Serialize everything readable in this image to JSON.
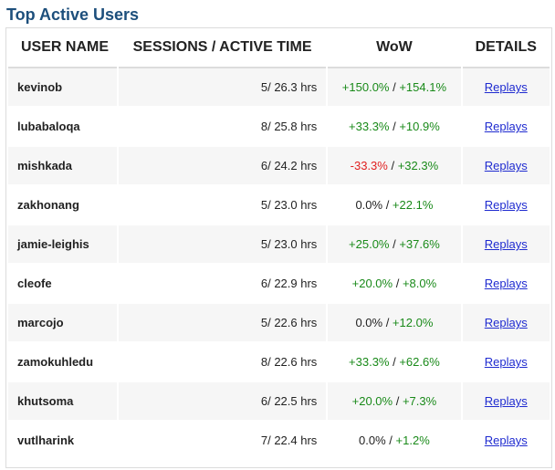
{
  "title": "Top Active Users",
  "columns": {
    "user_name": "USER NAME",
    "sessions": "SESSIONS / ACTIVE TIME",
    "wow": "WoW",
    "details": "DETAILS"
  },
  "colors": {
    "title": "#1d4f7c",
    "positive": "#1a8a1a",
    "negative": "#e02020",
    "link": "#1f2bd0"
  },
  "rows": [
    {
      "user": "kevinob",
      "sessions": "5/ 26.3 hrs",
      "wow_a": "+150.0%",
      "wow_a_type": "pos",
      "wow_b": "+154.1%",
      "wow_b_type": "pos",
      "details": "Replays"
    },
    {
      "user": "lubabaloqa",
      "sessions": "8/ 25.8 hrs",
      "wow_a": "+33.3%",
      "wow_a_type": "pos",
      "wow_b": "+10.9%",
      "wow_b_type": "pos",
      "details": "Replays"
    },
    {
      "user": "mishkada",
      "sessions": "6/ 24.2 hrs",
      "wow_a": "-33.3%",
      "wow_a_type": "neg",
      "wow_b": "+32.3%",
      "wow_b_type": "pos",
      "details": "Replays"
    },
    {
      "user": "zakhonang",
      "sessions": "5/ 23.0 hrs",
      "wow_a": "0.0%",
      "wow_a_type": "neu",
      "wow_b": "+22.1%",
      "wow_b_type": "pos",
      "details": "Replays"
    },
    {
      "user": "jamie-leighis",
      "sessions": "5/ 23.0 hrs",
      "wow_a": "+25.0%",
      "wow_a_type": "pos",
      "wow_b": "+37.6%",
      "wow_b_type": "pos",
      "details": "Replays"
    },
    {
      "user": "cleofe",
      "sessions": "6/ 22.9 hrs",
      "wow_a": "+20.0%",
      "wow_a_type": "pos",
      "wow_b": "+8.0%",
      "wow_b_type": "pos",
      "details": "Replays"
    },
    {
      "user": "marcojo",
      "sessions": "5/ 22.6 hrs",
      "wow_a": "0.0%",
      "wow_a_type": "neu",
      "wow_b": "+12.0%",
      "wow_b_type": "pos",
      "details": "Replays"
    },
    {
      "user": "zamokuhledu",
      "sessions": "8/ 22.6 hrs",
      "wow_a": "+33.3%",
      "wow_a_type": "pos",
      "wow_b": "+62.6%",
      "wow_b_type": "pos",
      "details": "Replays"
    },
    {
      "user": "khutsoma",
      "sessions": "6/ 22.5 hrs",
      "wow_a": "+20.0%",
      "wow_a_type": "pos",
      "wow_b": "+7.3%",
      "wow_b_type": "pos",
      "details": "Replays"
    },
    {
      "user": "vutlharink",
      "sessions": "7/ 22.4 hrs",
      "wow_a": "0.0%",
      "wow_a_type": "neu",
      "wow_b": "+1.2%",
      "wow_b_type": "pos",
      "details": "Replays"
    }
  ]
}
